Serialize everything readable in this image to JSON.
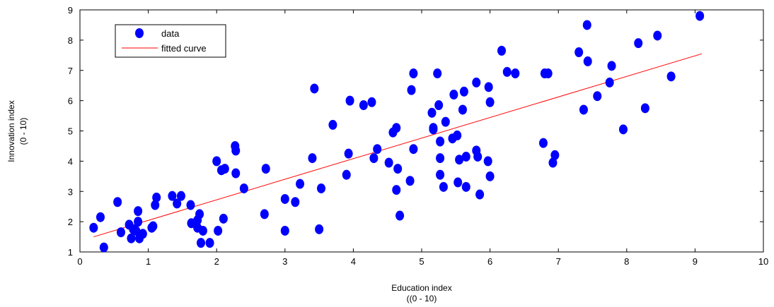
{
  "chart_data": {
    "type": "scatter",
    "title": "",
    "xlabel": "Education index",
    "xlabel_sub": "((0 - 10)",
    "ylabel": "Innovation index",
    "ylabel_sub": "(0 - 10)",
    "xlim": [
      0,
      10
    ],
    "ylim": [
      1,
      9
    ],
    "xticks": [
      "0",
      "1",
      "2",
      "3",
      "4",
      "5",
      "6",
      "7",
      "8",
      "9",
      "10"
    ],
    "yticks": [
      "1",
      "2",
      "3",
      "4",
      "5",
      "6",
      "7",
      "8",
      "9"
    ],
    "grid": false,
    "legend_position": "top-left",
    "colors": {
      "data": "#0000ff",
      "fit": "#ff0000"
    },
    "series": [
      {
        "name": "data",
        "kind": "points",
        "points": [
          [
            0.2,
            1.8
          ],
          [
            0.3,
            2.15
          ],
          [
            0.35,
            1.15
          ],
          [
            0.55,
            2.65
          ],
          [
            0.6,
            1.65
          ],
          [
            0.72,
            1.9
          ],
          [
            0.75,
            1.45
          ],
          [
            0.78,
            1.75
          ],
          [
            0.82,
            1.7
          ],
          [
            0.85,
            2.0
          ],
          [
            0.85,
            2.35
          ],
          [
            0.87,
            1.45
          ],
          [
            0.92,
            1.6
          ],
          [
            1.05,
            1.8
          ],
          [
            1.07,
            1.85
          ],
          [
            1.1,
            2.55
          ],
          [
            1.12,
            2.8
          ],
          [
            1.35,
            2.85
          ],
          [
            1.42,
            2.6
          ],
          [
            1.48,
            2.85
          ],
          [
            1.62,
            2.55
          ],
          [
            1.63,
            1.95
          ],
          [
            1.72,
            1.8
          ],
          [
            1.72,
            2.05
          ],
          [
            1.75,
            2.25
          ],
          [
            1.77,
            1.3
          ],
          [
            1.8,
            1.7
          ],
          [
            1.9,
            1.3
          ],
          [
            2.0,
            4.0
          ],
          [
            2.02,
            1.7
          ],
          [
            2.07,
            3.7
          ],
          [
            2.1,
            2.1
          ],
          [
            2.12,
            3.75
          ],
          [
            2.27,
            4.5
          ],
          [
            2.28,
            4.35
          ],
          [
            2.28,
            3.6
          ],
          [
            2.4,
            3.1
          ],
          [
            2.7,
            2.25
          ],
          [
            2.72,
            3.75
          ],
          [
            3.0,
            2.75
          ],
          [
            3.0,
            1.7
          ],
          [
            3.15,
            2.65
          ],
          [
            3.22,
            3.25
          ],
          [
            3.4,
            4.1
          ],
          [
            3.43,
            6.4
          ],
          [
            3.5,
            1.75
          ],
          [
            3.53,
            3.1
          ],
          [
            3.7,
            5.2
          ],
          [
            3.9,
            3.55
          ],
          [
            3.93,
            4.25
          ],
          [
            3.95,
            6.0
          ],
          [
            4.15,
            5.85
          ],
          [
            4.27,
            5.95
          ],
          [
            4.3,
            4.1
          ],
          [
            4.35,
            4.4
          ],
          [
            4.52,
            3.95
          ],
          [
            4.58,
            4.95
          ],
          [
            4.63,
            5.1
          ],
          [
            4.63,
            3.05
          ],
          [
            4.65,
            3.75
          ],
          [
            4.68,
            2.2
          ],
          [
            4.83,
            3.35
          ],
          [
            4.85,
            6.35
          ],
          [
            4.88,
            6.9
          ],
          [
            4.88,
            4.4
          ],
          [
            5.15,
            5.6
          ],
          [
            5.17,
            5.05
          ],
          [
            5.17,
            5.1
          ],
          [
            5.23,
            6.9
          ],
          [
            5.25,
            5.85
          ],
          [
            5.27,
            4.65
          ],
          [
            5.27,
            4.1
          ],
          [
            5.27,
            3.55
          ],
          [
            5.32,
            3.15
          ],
          [
            5.35,
            5.3
          ],
          [
            5.45,
            4.75
          ],
          [
            5.47,
            6.2
          ],
          [
            5.52,
            4.85
          ],
          [
            5.53,
            3.3
          ],
          [
            5.55,
            4.05
          ],
          [
            5.6,
            5.7
          ],
          [
            5.62,
            6.3
          ],
          [
            5.65,
            4.15
          ],
          [
            5.65,
            3.15
          ],
          [
            5.8,
            6.6
          ],
          [
            5.8,
            4.35
          ],
          [
            5.82,
            4.15
          ],
          [
            5.85,
            2.9
          ],
          [
            5.97,
            4.0
          ],
          [
            5.98,
            6.45
          ],
          [
            6.0,
            5.95
          ],
          [
            6.0,
            3.5
          ],
          [
            6.17,
            7.65
          ],
          [
            6.25,
            6.95
          ],
          [
            6.37,
            6.9
          ],
          [
            6.78,
            4.6
          ],
          [
            6.8,
            6.9
          ],
          [
            6.85,
            6.9
          ],
          [
            6.92,
            3.95
          ],
          [
            6.95,
            4.2
          ],
          [
            7.3,
            7.6
          ],
          [
            7.37,
            5.7
          ],
          [
            7.42,
            8.5
          ],
          [
            7.43,
            7.3
          ],
          [
            7.57,
            6.15
          ],
          [
            7.75,
            6.6
          ],
          [
            7.78,
            7.15
          ],
          [
            7.95,
            5.05
          ],
          [
            8.17,
            7.9
          ],
          [
            8.27,
            5.75
          ],
          [
            8.45,
            8.15
          ],
          [
            8.65,
            6.8
          ],
          [
            9.07,
            8.8
          ]
        ]
      },
      {
        "name": "fitted curve",
        "kind": "line",
        "points": [
          [
            0.2,
            1.5
          ],
          [
            9.1,
            7.55
          ]
        ]
      }
    ]
  }
}
